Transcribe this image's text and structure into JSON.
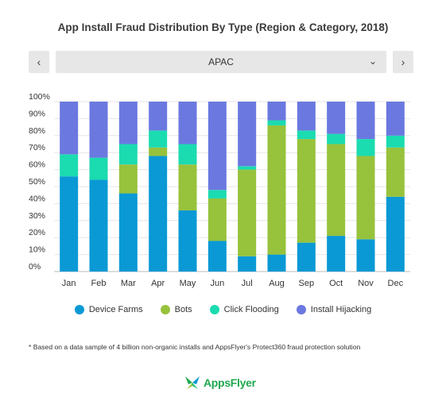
{
  "title": "App Install Fraud Distribution By Type (Region & Category, 2018)",
  "selector": {
    "value": "APAC",
    "prev_icon": "chevron-left-icon",
    "next_icon": "chevron-right-icon"
  },
  "footnote": "* Based on a data sample of 4 billion non-organic installs and AppsFlyer's Protect360 fraud protection solution",
  "logo": {
    "text": "AppsFlyer"
  },
  "colors": {
    "device_farms": "#0a99d5",
    "bots": "#97c23c",
    "click_flooding": "#1bdbb0",
    "install_hijacking": "#6b78e0"
  },
  "chart_data": {
    "type": "bar",
    "stacked": true,
    "categories": [
      "Jan",
      "Feb",
      "Mar",
      "Apr",
      "May",
      "Jun",
      "Jul",
      "Aug",
      "Sep",
      "Oct",
      "Nov",
      "Dec"
    ],
    "ylim": [
      0,
      100
    ],
    "yticks": [
      "0%",
      "10%",
      "20%",
      "30%",
      "40%",
      "50%",
      "60%",
      "70%",
      "80%",
      "90%",
      "100%"
    ],
    "grid": true,
    "legend_position": "bottom",
    "series": [
      {
        "name": "Device Farms",
        "color": "#0a99d5",
        "values": [
          56,
          54,
          46,
          68,
          36,
          18,
          9,
          10,
          17,
          21,
          19,
          44
        ]
      },
      {
        "name": "Bots",
        "color": "#97c23c",
        "values": [
          0,
          0,
          17,
          5,
          27,
          25,
          51,
          76,
          61,
          54,
          49,
          29
        ]
      },
      {
        "name": "Click Flooding",
        "color": "#1bdbb0",
        "values": [
          13,
          13,
          12,
          10,
          12,
          5,
          2,
          3,
          5,
          6,
          10,
          7
        ]
      },
      {
        "name": "Install Hijacking",
        "color": "#6b78e0",
        "values": [
          31,
          33,
          25,
          17,
          25,
          52,
          38,
          11,
          17,
          19,
          22,
          20
        ]
      }
    ]
  }
}
